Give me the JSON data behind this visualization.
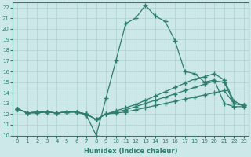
{
  "xlabel": "Humidex (Indice chaleur)",
  "x": [
    0,
    1,
    2,
    3,
    4,
    5,
    6,
    7,
    8,
    9,
    10,
    11,
    12,
    13,
    14,
    15,
    16,
    17,
    18,
    19,
    20,
    21,
    22,
    23
  ],
  "line1": [
    12.5,
    12.1,
    12.1,
    12.2,
    12.1,
    12.2,
    12.2,
    11.9,
    10.0,
    13.5,
    17.0,
    20.5,
    21.0,
    22.2,
    21.2,
    20.7,
    18.9,
    16.0,
    15.8,
    15.0,
    15.2,
    13.0,
    12.7,
    12.7
  ],
  "line2": [
    12.5,
    12.1,
    12.2,
    12.2,
    12.1,
    12.2,
    12.2,
    12.0,
    11.5,
    12.0,
    12.1,
    12.2,
    12.4,
    12.6,
    12.8,
    13.0,
    13.2,
    13.4,
    13.6,
    13.8,
    14.0,
    14.2,
    13.0,
    12.8
  ],
  "line3": [
    12.5,
    12.1,
    12.2,
    12.2,
    12.1,
    12.2,
    12.2,
    12.0,
    11.5,
    12.0,
    12.2,
    12.4,
    12.7,
    13.0,
    13.3,
    13.6,
    13.9,
    14.2,
    14.5,
    14.8,
    15.1,
    15.0,
    13.0,
    12.8
  ],
  "line4": [
    12.5,
    12.1,
    12.2,
    12.2,
    12.1,
    12.2,
    12.2,
    12.0,
    11.5,
    12.0,
    12.3,
    12.6,
    12.9,
    13.3,
    13.7,
    14.1,
    14.5,
    14.9,
    15.3,
    15.5,
    15.8,
    15.2,
    13.2,
    12.8
  ],
  "line_color": "#2d7d6e",
  "bg_color": "#cce8e8",
  "grid_color": "#b0d0d0",
  "ylim": [
    10,
    22.5
  ],
  "yticks": [
    10,
    11,
    12,
    13,
    14,
    15,
    16,
    17,
    18,
    19,
    20,
    21,
    22
  ],
  "xlim": [
    -0.5,
    23.5
  ],
  "marker": "+",
  "markersize": 4.0,
  "linewidth": 0.9
}
